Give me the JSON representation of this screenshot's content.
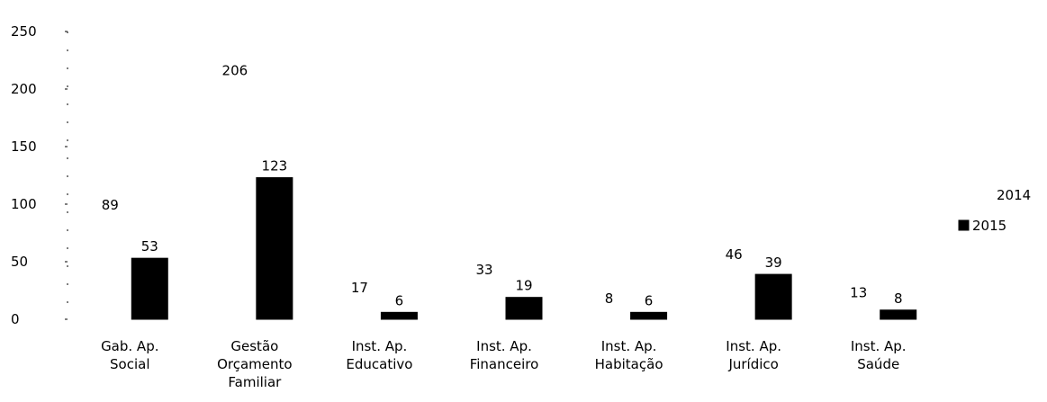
{
  "chart_data": {
    "type": "bar",
    "title": "",
    "xlabel": "",
    "ylabel": "",
    "ylim": [
      0,
      250
    ],
    "yticks": [
      0,
      50,
      100,
      150,
      200,
      250
    ],
    "grid": false,
    "legend_position": "right",
    "categories": [
      [
        "Gab. Ap.",
        "Social"
      ],
      [
        "Gestão",
        "Orçamento",
        "Familiar"
      ],
      [
        "Inst. Ap.",
        "Educativo"
      ],
      [
        "Inst. Ap.",
        "Financeiro"
      ],
      [
        "Inst. Ap.",
        "Habitação"
      ],
      [
        "Inst. Ap.",
        "Jurídico"
      ],
      [
        "Inst. Ap.",
        "Saúde"
      ]
    ],
    "series": [
      {
        "name": "2014",
        "color": "#ffffff",
        "values": [
          89,
          206,
          17,
          33,
          8,
          46,
          13
        ]
      },
      {
        "name": "2015",
        "color": "#000000",
        "values": [
          53,
          123,
          6,
          19,
          6,
          39,
          8
        ]
      }
    ]
  }
}
